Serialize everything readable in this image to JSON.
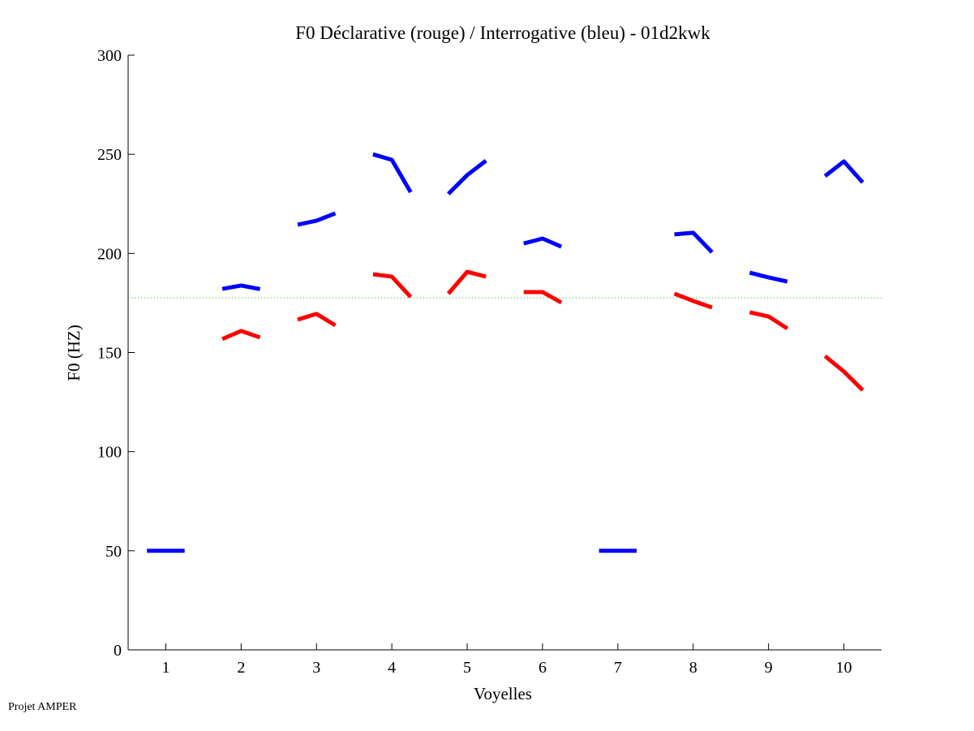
{
  "chart_data": {
    "type": "line",
    "title": "F0 Déclarative (rouge) / Interrogative (bleu) - 01d2kwk",
    "xlabel": "Voyelles",
    "ylabel": "F0 (HZ)",
    "xlim": [
      0.5,
      10.5
    ],
    "ylim": [
      0,
      300
    ],
    "xticks": [
      1,
      2,
      3,
      4,
      5,
      6,
      7,
      8,
      9,
      10
    ],
    "yticks": [
      0,
      50,
      100,
      150,
      200,
      250,
      300
    ],
    "grid": false,
    "reference_line": {
      "y": 177.6,
      "color": "#00cc00",
      "style": "dotted"
    },
    "series": [
      {
        "color": "#0000ff",
        "segments": [
          {
            "vowel": 1,
            "values": [
              50,
              50,
              50
            ]
          },
          {
            "vowel": 2,
            "values": [
              182.1,
              183.8,
              182
            ]
          },
          {
            "vowel": 3,
            "values": [
              214.5,
              216.5,
              220.2
            ]
          },
          {
            "vowel": 4,
            "values": [
              250,
              247.2,
              230.9
            ]
          },
          {
            "vowel": 5,
            "values": [
              230,
              239.5,
              246.8
            ]
          },
          {
            "vowel": 6,
            "values": [
              205,
              207.5,
              203.4
            ]
          },
          {
            "vowel": 7,
            "values": [
              50,
              50,
              50
            ]
          },
          {
            "vowel": 8,
            "values": [
              209.6,
              210.4,
              200.6
            ]
          },
          {
            "vowel": 9,
            "values": [
              190.3,
              187.9,
              185.8
            ]
          },
          {
            "vowel": 10,
            "values": [
              239,
              246.4,
              235.8
            ]
          }
        ]
      },
      {
        "color": "#ff0000",
        "segments": [
          {
            "vowel": 2,
            "values": [
              156.8,
              160.9,
              157.6
            ]
          },
          {
            "vowel": 3,
            "values": [
              166.6,
              169.5,
              163.7
            ]
          },
          {
            "vowel": 4,
            "values": [
              189.5,
              188.3,
              178
            ]
          },
          {
            "vowel": 5,
            "values": [
              179.7,
              190.7,
              188.3
            ]
          },
          {
            "vowel": 6,
            "values": [
              180.5,
              180.5,
              175.2
            ]
          },
          {
            "vowel": 8,
            "values": [
              179.7,
              176,
              172.7
            ]
          },
          {
            "vowel": 9,
            "values": [
              170.3,
              168.2,
              162.1
            ]
          },
          {
            "vowel": 10,
            "values": [
              148.2,
              140.4,
              131
            ]
          }
        ]
      }
    ]
  },
  "footer": "Projet AMPER"
}
